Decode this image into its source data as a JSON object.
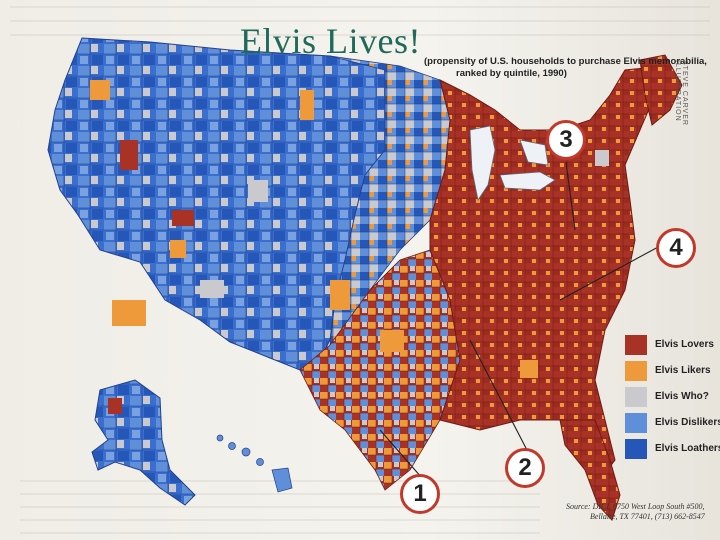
{
  "title": "Elvis Lives!",
  "subtitle": {
    "line1": "(propensity of U.S. households to purchase Elvis memorabilia,",
    "line2": "ranked by quintile, 1990)"
  },
  "side_credit": "STEVE CARVER ILLUSTRATION",
  "legend": [
    {
      "label": "Elvis Lovers",
      "color": "#a93226"
    },
    {
      "label": "Elvis Likers",
      "color": "#ef9a3a"
    },
    {
      "label": "Elvis Who?",
      "color": "#c9c9ce"
    },
    {
      "label": "Elvis Dislikers",
      "color": "#5f8fd8"
    },
    {
      "label": "Elvis Loathers",
      "color": "#2557b8"
    }
  ],
  "callouts": [
    "1",
    "2",
    "3",
    "4"
  ],
  "source": {
    "line1": "Source: DICI, 6750 West Loop South #500,",
    "line2": "Bellaire, TX 77401, (713) 662-8547"
  }
}
